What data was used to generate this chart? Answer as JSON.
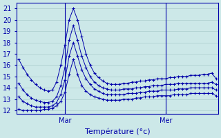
{
  "background_color": "#cce8e8",
  "grid_color": "#aacccc",
  "line_color": "#0000aa",
  "xlabel": "Température (°c)",
  "xlabel_fontsize": 8,
  "ylabel_ticks": [
    12,
    13,
    14,
    15,
    16,
    17,
    18,
    19,
    20,
    21
  ],
  "ylim": [
    11.7,
    21.5
  ],
  "xlim": [
    -0.5,
    47.5
  ],
  "xtick_positions": [
    11,
    35
  ],
  "xtick_labels": [
    "Mar",
    "Mer"
  ],
  "vline_positions": [
    11,
    35
  ],
  "series": [
    {
      "x": [
        0,
        1,
        2,
        3,
        4,
        5,
        6,
        7,
        8,
        9,
        10,
        11,
        12,
        13,
        14,
        15,
        16,
        17,
        18,
        19,
        20,
        21,
        22,
        23,
        24,
        25,
        26,
        27,
        28,
        29,
        30,
        31,
        32,
        33,
        34,
        35,
        36,
        37,
        38,
        39,
        40,
        41,
        42,
        43,
        44,
        45,
        46,
        47
      ],
      "y": [
        16.5,
        15.8,
        15.2,
        14.7,
        14.3,
        14.0,
        13.8,
        13.7,
        13.8,
        14.5,
        16.0,
        17.8,
        20.0,
        21.0,
        20.0,
        18.5,
        17.0,
        16.0,
        15.3,
        14.9,
        14.6,
        14.4,
        14.3,
        14.3,
        14.3,
        14.4,
        14.4,
        14.5,
        14.5,
        14.6,
        14.6,
        14.7,
        14.7,
        14.8,
        14.8,
        14.8,
        14.9,
        14.9,
        15.0,
        15.0,
        15.0,
        15.1,
        15.1,
        15.1,
        15.2,
        15.2,
        15.3,
        14.8
      ]
    },
    {
      "x": [
        0,
        1,
        2,
        3,
        4,
        5,
        6,
        7,
        8,
        9,
        10,
        11,
        12,
        13,
        14,
        15,
        16,
        17,
        18,
        19,
        20,
        21,
        22,
        23,
        24,
        25,
        26,
        27,
        28,
        29,
        30,
        31,
        32,
        33,
        34,
        35,
        36,
        37,
        38,
        39,
        40,
        41,
        42,
        43,
        44,
        45,
        46,
        47
      ],
      "y": [
        14.4,
        13.8,
        13.4,
        13.1,
        12.9,
        12.8,
        12.7,
        12.7,
        12.8,
        13.2,
        14.2,
        15.8,
        18.2,
        19.5,
        18.2,
        16.8,
        15.8,
        15.0,
        14.5,
        14.2,
        14.0,
        13.9,
        13.8,
        13.8,
        13.8,
        13.9,
        13.9,
        13.9,
        14.0,
        14.0,
        14.1,
        14.1,
        14.2,
        14.2,
        14.2,
        14.3,
        14.3,
        14.3,
        14.4,
        14.4,
        14.4,
        14.4,
        14.4,
        14.4,
        14.4,
        14.4,
        14.5,
        14.3
      ]
    },
    {
      "x": [
        0,
        1,
        2,
        3,
        4,
        5,
        6,
        7,
        8,
        9,
        10,
        11,
        12,
        13,
        14,
        15,
        16,
        17,
        18,
        19,
        20,
        21,
        22,
        23,
        24,
        25,
        26,
        27,
        28,
        29,
        30,
        31,
        32,
        33,
        34,
        35,
        36,
        37,
        38,
        39,
        40,
        41,
        42,
        43,
        44,
        45,
        46,
        47
      ],
      "y": [
        13.2,
        12.8,
        12.6,
        12.4,
        12.3,
        12.3,
        12.3,
        12.3,
        12.4,
        12.7,
        13.4,
        14.7,
        16.8,
        18.0,
        16.8,
        15.6,
        14.8,
        14.3,
        13.9,
        13.7,
        13.5,
        13.4,
        13.4,
        13.4,
        13.4,
        13.4,
        13.5,
        13.5,
        13.5,
        13.6,
        13.6,
        13.7,
        13.7,
        13.7,
        13.8,
        13.8,
        13.8,
        13.8,
        13.9,
        13.9,
        13.9,
        14.0,
        14.0,
        14.0,
        14.0,
        14.0,
        14.0,
        13.8
      ]
    },
    {
      "x": [
        0,
        1,
        2,
        3,
        4,
        5,
        6,
        7,
        8,
        9,
        10,
        11,
        12,
        13,
        14,
        15,
        16,
        17,
        18,
        19,
        20,
        21,
        22,
        23,
        24,
        25,
        26,
        27,
        28,
        29,
        30,
        31,
        32,
        33,
        34,
        35,
        36,
        37,
        38,
        39,
        40,
        41,
        42,
        43,
        44,
        45,
        46,
        47
      ],
      "y": [
        12.1,
        12.0,
        12.0,
        12.0,
        12.0,
        12.0,
        12.1,
        12.1,
        12.2,
        12.4,
        12.8,
        13.6,
        15.2,
        16.5,
        15.2,
        14.2,
        13.7,
        13.4,
        13.2,
        13.1,
        13.0,
        12.9,
        12.9,
        12.9,
        12.9,
        13.0,
        13.0,
        13.0,
        13.1,
        13.1,
        13.2,
        13.2,
        13.2,
        13.3,
        13.3,
        13.3,
        13.3,
        13.4,
        13.4,
        13.4,
        13.4,
        13.5,
        13.5,
        13.5,
        13.5,
        13.5,
        13.5,
        13.3
      ]
    }
  ]
}
